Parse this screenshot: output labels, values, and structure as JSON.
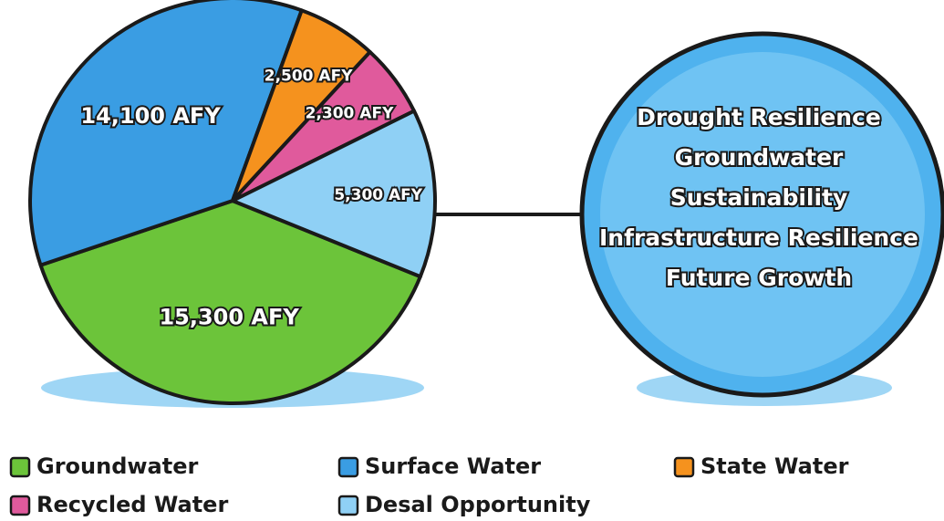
{
  "chart_data": {
    "type": "pie",
    "categories": [
      "Groundwater",
      "Surface Water",
      "State Water",
      "Recycled Water",
      "Desal Opportunity"
    ],
    "values": [
      15300,
      14100,
      2500,
      2300,
      5300
    ],
    "value_labels": [
      "15,300 AFY",
      "14,100 AFY",
      "2,500 AFY",
      "2,300 AFY",
      "5,300 AFY"
    ],
    "colors": [
      "#6cc43a",
      "#3a9de3",
      "#f5921e",
      "#e05a9c",
      "#8fd0f5"
    ],
    "annotations": [
      "Drought Resilience",
      "Groundwater",
      "Sustainability",
      "Infrastructure Resilience",
      "Future Growth"
    ],
    "legend": "bottom"
  }
}
